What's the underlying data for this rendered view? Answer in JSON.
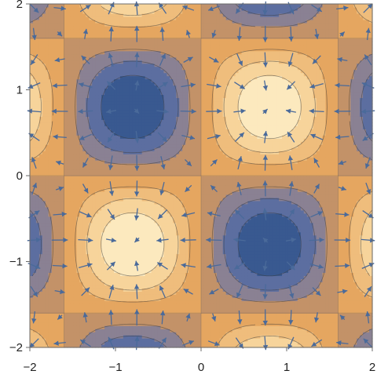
{
  "chart_data": {
    "type": "heatmap",
    "subtype": "contour with vector field",
    "function": "sin(x*pi/1.6)*sin(y*pi/1.6)",
    "xlim": [
      -2,
      2
    ],
    "ylim": [
      -2,
      2
    ],
    "x_ticks": [
      {
        "value": -2,
        "label": "−2"
      },
      {
        "value": -1,
        "label": "−1"
      },
      {
        "value": 0,
        "label": "0"
      },
      {
        "value": 1,
        "label": "1"
      },
      {
        "value": 2,
        "label": "2"
      }
    ],
    "y_ticks": [
      {
        "value": -2,
        "label": "−2"
      },
      {
        "value": -1,
        "label": "−1"
      },
      {
        "value": 0,
        "label": "0"
      },
      {
        "value": 1,
        "label": "1"
      },
      {
        "value": 2,
        "label": "2"
      }
    ],
    "contour_levels": [
      -0.75,
      -0.5,
      -0.25,
      0,
      0.25,
      0.5,
      0.75
    ],
    "vector_grid_step": 0.3,
    "colors": {
      "min": "#284f88",
      "mid_low": "#6d78a8",
      "zero": "#e09a52",
      "mid_high": "#f4c98a",
      "max": "#fff3cf",
      "arrow": "#4a6a9a",
      "frame": "#6b6b6b"
    },
    "grid": true,
    "legend": "none"
  }
}
